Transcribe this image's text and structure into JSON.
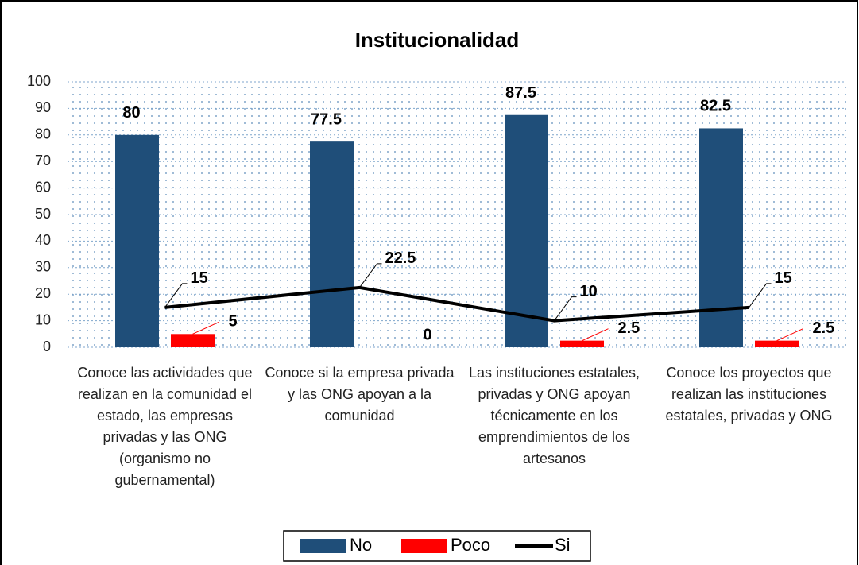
{
  "chart_data": {
    "type": "bar",
    "title": "Institucionalidad",
    "categories": [
      "Conoce las actividades que realizan en la comunidad el estado, las empresas privadas y las ONG (organismo no gubernamental)",
      "Conoce si la empresa privada y las ONG apoyan a la comunidad",
      "Las instituciones estatales, privadas y ONG apoyan técnicamente en los emprendimientos de los artesanos",
      "Conoce los proyectos que realizan las instituciones estatales, privadas y ONG"
    ],
    "series": [
      {
        "name": "No",
        "type": "bar",
        "color": "#1f4e79",
        "values": [
          80,
          77.5,
          87.5,
          82.5
        ]
      },
      {
        "name": "Poco",
        "type": "bar",
        "color": "#ff0000",
        "values": [
          5,
          0,
          2.5,
          2.5
        ]
      },
      {
        "name": "Si",
        "type": "line",
        "color": "#000000",
        "values": [
          15,
          22.5,
          10,
          15
        ]
      }
    ],
    "ylim": [
      0,
      100
    ],
    "yticks": [
      0,
      10,
      20,
      30,
      40,
      50,
      60,
      70,
      80,
      90,
      100
    ],
    "grid": true,
    "legend": "bottom"
  }
}
